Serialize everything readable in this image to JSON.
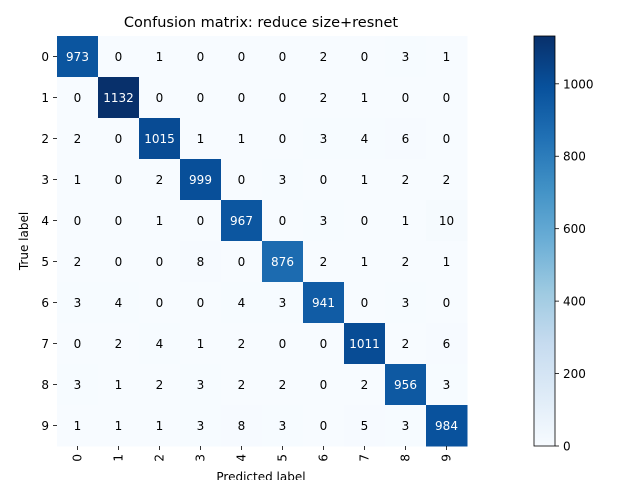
{
  "chart_data": {
    "type": "heatmap",
    "title": "Confusion matrix: reduce size+resnet",
    "xlabel": "Predicted label",
    "ylabel": "True label",
    "x_categories": [
      "0",
      "1",
      "2",
      "3",
      "4",
      "5",
      "6",
      "7",
      "8",
      "9"
    ],
    "y_categories": [
      "0",
      "1",
      "2",
      "3",
      "4",
      "5",
      "6",
      "7",
      "8",
      "9"
    ],
    "matrix": [
      [
        973,
        0,
        1,
        0,
        0,
        0,
        2,
        0,
        3,
        1
      ],
      [
        0,
        1132,
        0,
        0,
        0,
        0,
        2,
        1,
        0,
        0
      ],
      [
        2,
        0,
        1015,
        1,
        1,
        0,
        3,
        4,
        6,
        0
      ],
      [
        1,
        0,
        2,
        999,
        0,
        3,
        0,
        1,
        2,
        2
      ],
      [
        0,
        0,
        1,
        0,
        967,
        0,
        3,
        0,
        1,
        10
      ],
      [
        2,
        0,
        0,
        8,
        0,
        876,
        2,
        1,
        2,
        1
      ],
      [
        3,
        4,
        0,
        0,
        4,
        3,
        941,
        0,
        3,
        0
      ],
      [
        0,
        2,
        4,
        1,
        2,
        0,
        0,
        1011,
        2,
        6
      ],
      [
        3,
        1,
        2,
        3,
        2,
        2,
        0,
        2,
        956,
        3
      ],
      [
        1,
        1,
        1,
        3,
        8,
        3,
        0,
        5,
        3,
        984
      ]
    ],
    "colormap": "Blues",
    "colorbar": {
      "range": [
        0,
        1132
      ],
      "ticks": [
        0,
        200,
        400,
        600,
        800,
        1000
      ]
    }
  }
}
